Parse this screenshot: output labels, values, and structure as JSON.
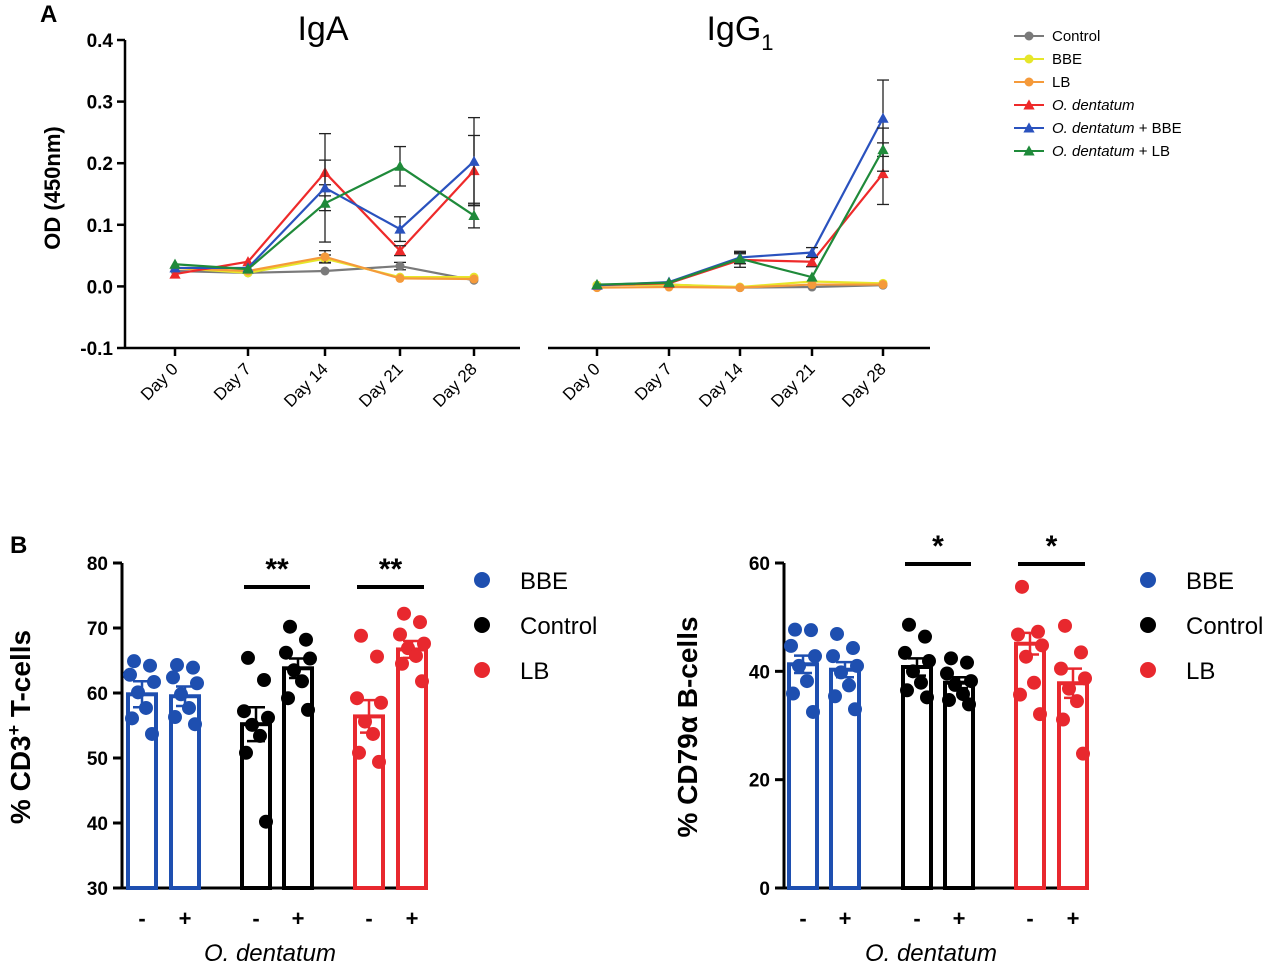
{
  "panel_labels": {
    "a": "A",
    "b": "B"
  },
  "colors": {
    "Control": "#7a7a7a",
    "BBE": "#e6e62a",
    "LB": "#f59a3a",
    "Od": "#ee2a2a",
    "OdBBE": "#2a52be",
    "OdLB": "#1f8a3a",
    "barBBE": "#1e4fb0",
    "barControl": "#000000",
    "barLB": "#e8282e"
  },
  "chart_data": [
    {
      "type": "line",
      "title": "IgA",
      "ylabel": "OD (450nm)",
      "ylim": [
        -0.1,
        0.4
      ],
      "yticks": [
        "0.4",
        "0.3",
        "0.2",
        "0.1",
        "0.0",
        "-0.1"
      ],
      "categories": [
        "Day 0",
        "Day 7",
        "Day 14",
        "Day 21",
        "Day 28"
      ],
      "series": [
        {
          "name": "Control",
          "values": [
            0.025,
            0.022,
            0.025,
            0.033,
            0.01
          ],
          "err": [
            0.004,
            0.003,
            0.004,
            0.006,
            0.003
          ]
        },
        {
          "name": "BBE",
          "values": [
            0.03,
            0.022,
            0.045,
            0.015,
            0.015
          ],
          "err": [
            0.004,
            0.003,
            0.006,
            0.003,
            0.003
          ]
        },
        {
          "name": "LB",
          "values": [
            0.03,
            0.025,
            0.048,
            0.013,
            0.012
          ],
          "err": [
            0.004,
            0.003,
            0.01,
            0.003,
            0.003
          ]
        },
        {
          "name": "O. dentatum",
          "values": [
            0.02,
            0.04,
            0.185,
            0.058,
            0.188
          ],
          "err": [
            0.004,
            0.005,
            0.02,
            0.008,
            0.057
          ]
        },
        {
          "name": "O. dentatum + BBE",
          "values": [
            0.03,
            0.03,
            0.16,
            0.093,
            0.203
          ],
          "err": [
            0.004,
            0.004,
            0.088,
            0.02,
            0.071
          ]
        },
        {
          "name": "O. dentatum + LB",
          "values": [
            0.036,
            0.028,
            0.135,
            0.195,
            0.115
          ],
          "err": [
            0.004,
            0.004,
            0.012,
            0.032,
            0.02
          ]
        }
      ]
    },
    {
      "type": "line",
      "title": "IgG",
      "title_sub": "1",
      "ylim": [
        -0.1,
        0.4
      ],
      "categories": [
        "Day 0",
        "Day 7",
        "Day 14",
        "Day 21",
        "Day 28"
      ],
      "series": [
        {
          "name": "Control",
          "values": [
            0.002,
            0.003,
            -0.002,
            -0.001,
            0.002
          ],
          "err": [
            0.002,
            0.002,
            0.002,
            0.002,
            0.002
          ]
        },
        {
          "name": "BBE",
          "values": [
            0.002,
            0.003,
            -0.001,
            0.008,
            0.005
          ],
          "err": [
            0.002,
            0.002,
            0.002,
            0.002,
            0.002
          ]
        },
        {
          "name": "LB",
          "values": [
            -0.002,
            -0.001,
            -0.002,
            0.003,
            0.003
          ],
          "err": [
            0.002,
            0.002,
            0.002,
            0.002,
            0.002
          ]
        },
        {
          "name": "O. dentatum",
          "values": [
            0.002,
            0.005,
            0.043,
            0.04,
            0.183
          ],
          "err": [
            0.002,
            0.002,
            0.012,
            0.008,
            0.05
          ]
        },
        {
          "name": "O. dentatum + BBE",
          "values": [
            0.002,
            0.007,
            0.047,
            0.055,
            0.273
          ],
          "err": [
            0.002,
            0.002,
            0.01,
            0.008,
            0.062
          ]
        },
        {
          "name": "O. dentatum + LB",
          "values": [
            0.003,
            0.006,
            0.045,
            0.015,
            0.222
          ],
          "err": [
            0.002,
            0.002,
            0.008,
            0.005,
            0.035
          ]
        }
      ]
    },
    {
      "type": "bar",
      "ylabel_pre": "% CD3",
      "ylabel_sup": "+",
      "ylabel_post": " T-cells",
      "ylim": [
        30,
        80
      ],
      "yticks": [
        "80",
        "70",
        "60",
        "50",
        "40",
        "30"
      ],
      "signs": [
        "-",
        "+",
        "-",
        "+",
        "-",
        "+"
      ],
      "xlabel": "O. dentatum",
      "legend": [
        "BBE",
        "Control",
        "LB"
      ],
      "bars": [
        {
          "group": "BBE",
          "value": 59.8,
          "err": 2.0,
          "points": [
            64.9,
            64.2,
            62.8,
            61.7,
            60.1,
            57.7,
            56.1,
            53.7
          ]
        },
        {
          "group": "BBE",
          "value": 59.5,
          "err": 1.5,
          "points": [
            64.3,
            63.9,
            62.4,
            61.5,
            59.8,
            57.7,
            56.3,
            55.2
          ]
        },
        {
          "group": "Control",
          "value": 55.2,
          "err": 2.6,
          "points": [
            65.4,
            62.0,
            57.2,
            56.2,
            55.1,
            53.4,
            50.8,
            40.2
          ]
        },
        {
          "group": "Control",
          "value": 63.8,
          "err": 1.5,
          "points": [
            70.2,
            68.2,
            66.2,
            65.3,
            63.5,
            61.8,
            59.2,
            57.4
          ]
        },
        {
          "group": "LB",
          "value": 56.4,
          "err": 2.5,
          "points": [
            68.8,
            65.6,
            59.2,
            58.5,
            55.6,
            53.7,
            50.8,
            49.4
          ]
        },
        {
          "group": "LB",
          "value": 66.7,
          "err": 1.3,
          "points": [
            72.2,
            70.9,
            69.0,
            67.6,
            66.9,
            65.7,
            64.5,
            61.8
          ]
        }
      ],
      "significance": [
        {
          "bars": [
            2,
            3
          ],
          "label": "**"
        },
        {
          "bars": [
            4,
            5
          ],
          "label": "**"
        }
      ]
    },
    {
      "type": "bar",
      "ylabel": "% CD79α B-cells",
      "ylim": [
        0,
        60
      ],
      "yticks": [
        "60",
        "40",
        "20",
        "0"
      ],
      "signs": [
        "-",
        "+",
        "-",
        "+",
        "-",
        "+"
      ],
      "xlabel": "O. dentatum",
      "legend": [
        "BBE",
        "Control",
        "LB"
      ],
      "bars": [
        {
          "group": "BBE",
          "value": 41.3,
          "err": 1.6,
          "points": [
            47.7,
            47.6,
            44.7,
            42.8,
            41.0,
            38.2,
            35.9,
            32.5
          ]
        },
        {
          "group": "BBE",
          "value": 40.3,
          "err": 1.4,
          "points": [
            46.9,
            44.3,
            42.8,
            41.0,
            39.8,
            37.4,
            35.4,
            33.0
          ]
        },
        {
          "group": "Control",
          "value": 40.8,
          "err": 1.6,
          "points": [
            48.6,
            46.4,
            43.4,
            41.9,
            40.0,
            37.9,
            36.5,
            35.2
          ]
        },
        {
          "group": "Control",
          "value": 37.9,
          "err": 1.0,
          "points": [
            42.4,
            41.6,
            39.6,
            38.2,
            37.5,
            35.8,
            34.7,
            33.9
          ]
        },
        {
          "group": "LB",
          "value": 45.1,
          "err": 2.0,
          "points": [
            55.6,
            47.3,
            46.8,
            44.8,
            42.7,
            37.9,
            35.7,
            32.1
          ]
        },
        {
          "group": "LB",
          "value": 37.8,
          "err": 2.7,
          "points": [
            48.4,
            43.5,
            40.5,
            38.7,
            36.8,
            34.5,
            31.1,
            24.8
          ]
        }
      ],
      "significance": [
        {
          "bars": [
            2,
            3
          ],
          "label": "*"
        },
        {
          "bars": [
            4,
            5
          ],
          "label": "*"
        }
      ]
    }
  ]
}
